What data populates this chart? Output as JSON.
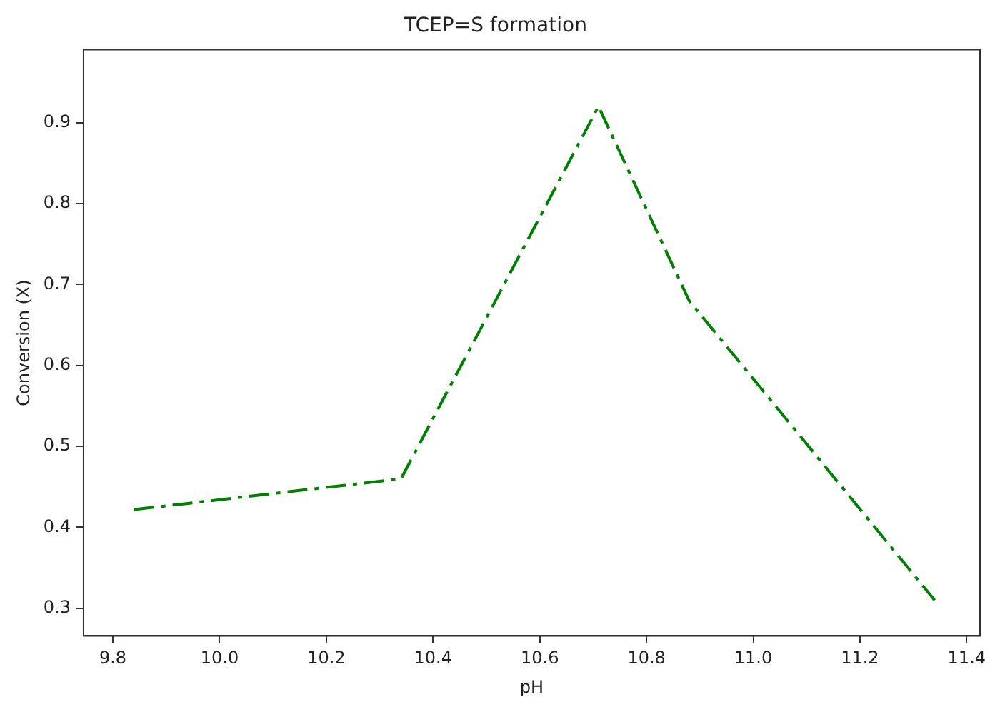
{
  "chart_data": {
    "type": "line",
    "title": "TCEP=S formation",
    "xlabel": "pH",
    "ylabel": "Conversion (X)",
    "x": [
      9.84,
      10.34,
      10.71,
      10.88,
      11.34
    ],
    "series": [
      {
        "color": "#008000",
        "values": [
          0.422,
          0.46,
          0.92,
          0.68,
          0.31
        ]
      }
    ],
    "xlim": [
      9.745,
      11.425
    ],
    "xticks": [
      {
        "value": 9.8,
        "label": "9.8"
      },
      {
        "value": 10.0,
        "label": "10.0"
      },
      10.2,
      10.4,
      10.6,
      10.8,
      {
        "value": 11.0,
        "label": "11.0"
      },
      11.2,
      11.4
    ],
    "ylim": [
      0.266,
      0.99
    ],
    "yticks": [
      0.3,
      0.4,
      0.5,
      0.6,
      0.7,
      0.8,
      0.9
    ],
    "grid": false,
    "legend": false,
    "marker": "none",
    "line_style": "dashed"
  }
}
